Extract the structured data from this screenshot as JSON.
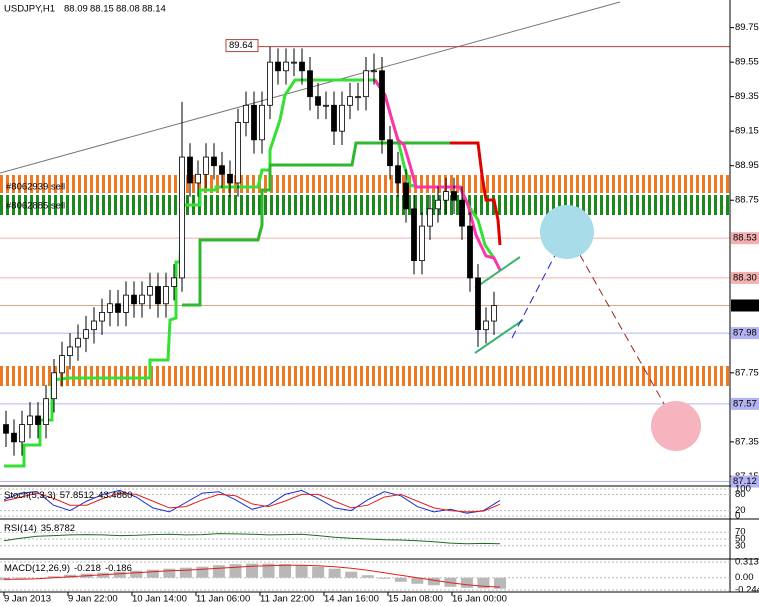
{
  "chart_data": {
    "type": "candlestick",
    "symbol": "USDJPY,H1",
    "quote": [
      88.09,
      88.15,
      88.08,
      88.14
    ],
    "categories": [
      "9 Jan 2013",
      null,
      null,
      null,
      null,
      null,
      null,
      null,
      "9 Jan 22:00",
      null,
      null,
      null,
      null,
      null,
      null,
      null,
      "10 Jan 14:00",
      null,
      null,
      null,
      null,
      null,
      null,
      null,
      "11 Jan 06:00",
      null,
      null,
      null,
      null,
      null,
      null,
      null,
      "11 Jan 22:00",
      null,
      null,
      null,
      null,
      null,
      null,
      null,
      "14 Jan 16:00",
      null,
      null,
      null,
      null,
      null,
      null,
      null,
      "15 Jan 08:00",
      null,
      null,
      null,
      null,
      null,
      null,
      null,
      "16 Jan 00:00",
      null,
      null,
      null,
      null,
      null
    ],
    "open": [
      87.45,
      87.4,
      87.35,
      87.45,
      87.5,
      87.45,
      87.6,
      87.75,
      87.85,
      87.9,
      87.95,
      88.0,
      88.05,
      88.1,
      88.15,
      88.1,
      88.2,
      88.15,
      88.2,
      88.25,
      88.15,
      88.25,
      88.3,
      89.0,
      88.85,
      88.9,
      89.0,
      88.95,
      88.9,
      88.85,
      89.2,
      89.3,
      89.1,
      89.3,
      89.55,
      89.5,
      89.55,
      89.55,
      89.5,
      89.35,
      89.3,
      89.3,
      89.15,
      89.3,
      89.35,
      89.35,
      89.5,
      89.5,
      89.1,
      88.95,
      88.85,
      88.7,
      88.4,
      88.6,
      88.7,
      88.75,
      88.8,
      88.75,
      88.6,
      88.3,
      88.0,
      88.05
    ],
    "high": [
      87.53,
      87.48,
      87.53,
      87.58,
      87.58,
      87.68,
      87.83,
      87.93,
      87.98,
      88.03,
      88.08,
      88.13,
      88.18,
      88.23,
      88.23,
      88.28,
      88.28,
      88.28,
      88.33,
      88.33,
      88.33,
      88.38,
      89.32,
      89.08,
      88.98,
      89.08,
      89.08,
      89.03,
      88.98,
      89.28,
      89.38,
      89.38,
      89.38,
      89.64,
      89.63,
      89.63,
      89.63,
      89.63,
      89.58,
      89.43,
      89.38,
      89.38,
      89.38,
      89.43,
      89.43,
      89.58,
      89.6,
      89.58,
      89.18,
      89.03,
      88.93,
      88.78,
      88.68,
      88.78,
      88.83,
      88.88,
      88.88,
      88.83,
      88.68,
      88.38,
      88.13,
      88.22
    ],
    "low": [
      87.32,
      87.27,
      87.27,
      87.37,
      87.37,
      87.37,
      87.52,
      87.67,
      87.77,
      87.82,
      87.87,
      87.92,
      87.97,
      88.02,
      88.02,
      88.02,
      88.07,
      88.07,
      88.12,
      88.07,
      88.07,
      88.17,
      88.22,
      88.77,
      88.77,
      88.82,
      88.87,
      88.82,
      88.77,
      88.77,
      89.12,
      89.02,
      89.02,
      89.22,
      89.42,
      89.42,
      89.47,
      89.42,
      89.27,
      89.22,
      89.22,
      89.07,
      89.07,
      89.22,
      89.27,
      89.27,
      89.42,
      89.02,
      88.87,
      88.77,
      88.62,
      88.32,
      88.32,
      88.52,
      88.62,
      88.67,
      88.67,
      88.52,
      88.22,
      87.9,
      87.92,
      87.97
    ],
    "close": [
      87.4,
      87.35,
      87.45,
      87.5,
      87.45,
      87.6,
      87.75,
      87.85,
      87.9,
      87.95,
      88.0,
      88.05,
      88.1,
      88.15,
      88.1,
      88.2,
      88.15,
      88.2,
      88.25,
      88.15,
      88.25,
      88.3,
      89.0,
      88.85,
      88.9,
      89.0,
      88.95,
      88.9,
      88.85,
      89.2,
      89.3,
      89.1,
      89.3,
      89.55,
      89.5,
      89.55,
      89.55,
      89.5,
      89.35,
      89.3,
      89.3,
      89.15,
      89.3,
      89.35,
      89.35,
      89.5,
      89.5,
      89.1,
      88.95,
      88.85,
      88.7,
      88.4,
      88.6,
      88.7,
      88.75,
      88.8,
      88.75,
      88.6,
      88.3,
      88.0,
      88.05,
      88.14
    ],
    "ylim": [
      87.1,
      89.91
    ],
    "yticks": [
      89.75,
      89.55,
      89.35,
      89.15,
      88.95,
      88.75,
      87.75,
      87.35,
      87.15
    ],
    "levels": [
      {
        "value": 89.64,
        "color": "#b5403a"
      },
      {
        "value": 88.53,
        "color": "#f2b0b0"
      },
      {
        "value": 88.3,
        "label": "88.30",
        "color": "#f2b0b0"
      },
      {
        "value": 88.14,
        "color": "#d9a98a"
      },
      {
        "value": 87.98,
        "color": "#b4b4f4"
      },
      {
        "value": 87.57,
        "color": "#b4b4f4"
      },
      {
        "value": 87.12,
        "color": "#b4b4f4"
      }
    ],
    "orders": [
      "#8062939 sell",
      "#8062885 sell"
    ],
    "stoch": {
      "name": "Stoch(5,3,3)",
      "readings": [
        57.8512,
        {
          "value": 43.486,
          "label": "43.4860"
        }
      ],
      "ylim": [
        0,
        100
      ],
      "yticks": [
        100,
        80,
        20,
        0
      ],
      "main": [
        60,
        85,
        90,
        40,
        20,
        55,
        80,
        95,
        70,
        30,
        15,
        50,
        85,
        90,
        60,
        25,
        40,
        80,
        95,
        65,
        30,
        20,
        60,
        90,
        75,
        35,
        15,
        25,
        10,
        20,
        57.8512
      ],
      "signal": [
        55,
        70,
        85,
        65,
        40,
        40,
        65,
        85,
        80,
        55,
        30,
        35,
        60,
        80,
        75,
        45,
        35,
        55,
        80,
        80,
        55,
        30,
        40,
        70,
        80,
        55,
        30,
        20,
        15,
        18,
        43.486
      ]
    },
    "rsi": {
      "name": "RSI(14)",
      "readings": [
        35.8782
      ],
      "ylim": [
        0,
        100
      ],
      "yticks": [
        70,
        50,
        30
      ],
      "values": [
        45,
        52,
        58,
        60,
        62,
        63,
        62,
        60,
        61,
        63,
        64,
        62,
        63,
        66,
        65,
        64,
        62,
        63,
        64,
        60,
        55,
        52,
        50,
        48,
        47,
        45,
        42,
        38,
        36,
        37,
        35.8782
      ]
    },
    "macd": {
      "name": "MACD(12,26,9)",
      "readings": [
        -0.218,
        -0.186
      ],
      "ylim": [
        -0.244,
        0.313
      ],
      "yticks": [
        0.313,
        {
          "value": 0,
          "label": "0.00"
        },
        -0.244
      ],
      "histogram": [
        -0.05,
        -0.02,
        0.0,
        0.03,
        0.06,
        0.08,
        0.1,
        0.12,
        0.14,
        0.16,
        0.18,
        0.2,
        0.22,
        0.25,
        0.27,
        0.28,
        0.28,
        0.27,
        0.25,
        0.22,
        0.18,
        0.12,
        0.05,
        -0.02,
        -0.08,
        -0.12,
        -0.15,
        -0.18,
        -0.2,
        -0.21,
        -0.218
      ],
      "signal": [
        -0.03,
        -0.03,
        -0.02,
        0.0,
        0.02,
        0.04,
        0.06,
        0.08,
        0.1,
        0.12,
        0.14,
        0.15,
        0.17,
        0.19,
        0.21,
        0.23,
        0.24,
        0.25,
        0.25,
        0.24,
        0.22,
        0.19,
        0.15,
        0.1,
        0.05,
        0.0,
        -0.05,
        -0.1,
        -0.14,
        -0.17,
        -0.186
      ]
    }
  }
}
